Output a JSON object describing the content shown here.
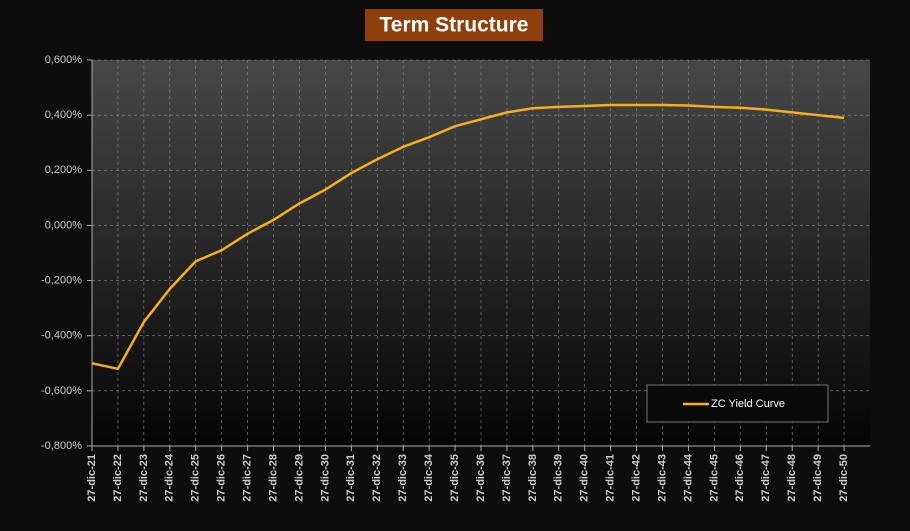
{
  "chart_data": {
    "type": "line",
    "title": "Term Structure",
    "categories": [
      "27-dic-21",
      "27-dic-22",
      "27-dic-23",
      "27-dic-24",
      "27-dic-25",
      "27-dic-26",
      "27-dic-27",
      "27-dic-28",
      "27-dic-29",
      "27-dic-30",
      "27-dic-31",
      "27-dic-32",
      "27-dic-33",
      "27-dic-34",
      "27-dic-35",
      "27-dic-36",
      "27-dic-37",
      "27-dic-38",
      "27-dic-39",
      "27-dic-40",
      "27-dic-41",
      "27-dic-42",
      "27-dic-43",
      "27-dic-44",
      "27-dic-45",
      "27-dic-46",
      "27-dic-47",
      "27-dic-48",
      "27-dic-49",
      "27-dic-50"
    ],
    "series": [
      {
        "name": "ZC Yield Curve",
        "color": "#f5b01a",
        "values": [
          -0.5,
          -0.52,
          -0.35,
          -0.23,
          -0.13,
          -0.09,
          -0.03,
          0.02,
          0.08,
          0.13,
          0.19,
          0.24,
          0.285,
          0.32,
          0.36,
          0.385,
          0.41,
          0.425,
          0.43,
          0.433,
          0.437,
          0.437,
          0.437,
          0.435,
          0.43,
          0.427,
          0.42,
          0.41,
          0.4,
          0.39
        ]
      }
    ],
    "ylim": [
      -0.8,
      0.6
    ],
    "yticks": [
      {
        "value": -0.8,
        "label": "-0,800%"
      },
      {
        "value": -0.6,
        "label": "-0,600%"
      },
      {
        "value": -0.4,
        "label": "-0,400%"
      },
      {
        "value": -0.2,
        "label": "-0,200%"
      },
      {
        "value": 0,
        "label": "0,000%"
      },
      {
        "value": 0.2,
        "label": "0,200%"
      },
      {
        "value": 0.4,
        "label": "0,400%"
      },
      {
        "value": 0.6,
        "label": "0,600%"
      }
    ],
    "grid": true,
    "legend": "lower right"
  }
}
